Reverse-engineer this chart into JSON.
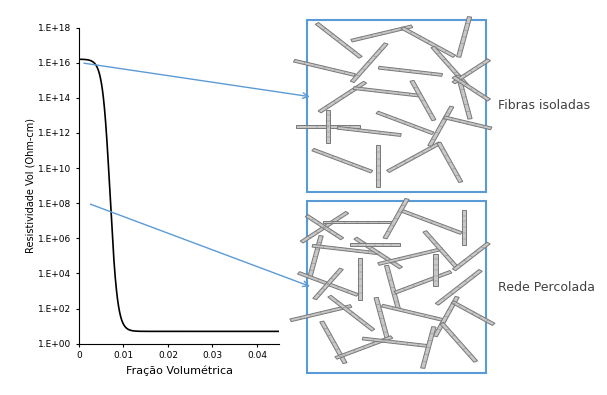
{
  "ylabel": "Resistividade Vol (Ohm-cm)",
  "xlabel": "Fração Volumétrica",
  "xlabel_color": "#000000",
  "ylabel_color": "#000000",
  "xlim": [
    0,
    0.045
  ],
  "ylim_log": [
    1.0,
    1e+18
  ],
  "yticks": [
    1.0,
    100.0,
    10000.0,
    1000000.0,
    100000000.0,
    10000000000.0,
    1000000000000.0,
    100000000000000.0,
    1e+16,
    1e+18
  ],
  "ytick_labels": [
    "1.E+00",
    "1.E+02",
    "1.E+04",
    "1.E+06",
    "1.E+08",
    "1.E+10",
    "1.E+12",
    "1.E+14",
    "1.E+16",
    "1.E+18"
  ],
  "xticks": [
    0,
    0.01,
    0.02,
    0.03,
    0.04
  ],
  "xtick_labels": [
    "0",
    "0.01",
    "0.02",
    "0.03",
    "0.04"
  ],
  "line_color": "#000000",
  "percolation_threshold": 0.007,
  "high_resistivity": 1.6e+16,
  "low_resistivity": 5.0,
  "label_fibras": "Fibras isoladas",
  "label_rede": "Rede Percolada",
  "label_fibras_color": "#404040",
  "label_rede_color": "#404040",
  "arrow_color": "#5B9BD5",
  "box_color": "#5B9BD5",
  "background_color": "#ffffff",
  "figsize": [
    6.07,
    3.95
  ],
  "dpi": 100
}
